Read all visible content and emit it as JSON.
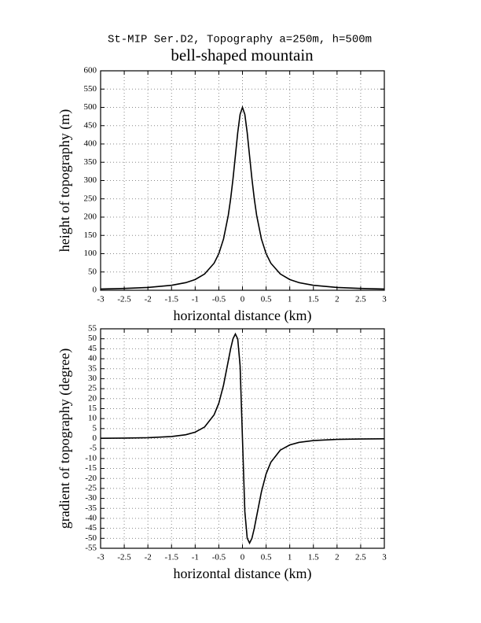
{
  "chart_data": [
    {
      "type": "line",
      "subtitle": "St-MIP Ser.D2, Topography a=250m, h=500m",
      "title": "bell-shaped mountain",
      "xlabel": "horizontal distance (km)",
      "ylabel": "height of topography (m)",
      "x": [
        -3,
        -2.5,
        -2,
        -1.5,
        -1.2,
        -1,
        -0.8,
        -0.6,
        -0.5,
        -0.4,
        -0.3,
        -0.25,
        -0.2,
        -0.15,
        -0.1,
        -0.05,
        0,
        0.05,
        0.1,
        0.15,
        0.2,
        0.25,
        0.3,
        0.4,
        0.5,
        0.6,
        0.8,
        1,
        1.2,
        1.5,
        2,
        2.5,
        3
      ],
      "series": [
        {
          "color": "#000000",
          "values": [
            3.4,
            5.0,
            7.7,
            13.5,
            20.8,
            29.4,
            44.5,
            74.0,
            100,
            140.4,
            204.9,
            250,
            304.9,
            367.6,
            431.0,
            480.8,
            500,
            480.8,
            431.0,
            367.6,
            304.9,
            250,
            204.9,
            140.4,
            100,
            74.0,
            44.5,
            29.4,
            20.8,
            13.5,
            7.7,
            5.0,
            3.4
          ]
        }
      ],
      "xlim": [
        -3,
        3
      ],
      "xticks": [
        -3,
        -2.5,
        -2,
        -1.5,
        -1,
        -0.5,
        0,
        0.5,
        1,
        1.5,
        2,
        2.5,
        3
      ],
      "ylim": [
        0,
        600
      ],
      "yticks": [
        0,
        50,
        100,
        150,
        200,
        250,
        300,
        350,
        400,
        450,
        500,
        550,
        600
      ],
      "grid": true
    },
    {
      "type": "line",
      "xlabel": "horizontal distance (km)",
      "ylabel": "gradient of topography (degree)",
      "x": [
        -3,
        -2.5,
        -2,
        -1.5,
        -1.2,
        -1,
        -0.8,
        -0.6,
        -0.5,
        -0.4,
        -0.3,
        -0.25,
        -0.2,
        -0.15,
        -0.1,
        -0.05,
        0,
        0.05,
        0.1,
        0.15,
        0.2,
        0.25,
        0.3,
        0.4,
        0.5,
        0.6,
        0.8,
        1,
        1.2,
        1.5,
        2,
        2.5,
        3
      ],
      "series": [
        {
          "color": "#000000",
          "values": [
            0.13,
            0.22,
            0.43,
            1.0,
            1.9,
            3.2,
            5.8,
            11.9,
            17.7,
            26.8,
            38.9,
            45,
            50.0,
            52.4,
            49.9,
            36.5,
            0,
            -36.5,
            -49.9,
            -52.4,
            -50.0,
            -45,
            -38.9,
            -26.8,
            -17.7,
            -11.9,
            -5.8,
            -3.2,
            -1.9,
            -1.0,
            -0.43,
            -0.22,
            -0.13
          ]
        }
      ],
      "xlim": [
        -3,
        3
      ],
      "xticks": [
        -3,
        -2.5,
        -2,
        -1.5,
        -1,
        -0.5,
        0,
        0.5,
        1,
        1.5,
        2,
        2.5,
        3
      ],
      "ylim": [
        -55,
        55
      ],
      "yticks": [
        -55,
        -50,
        -45,
        -40,
        -35,
        -30,
        -25,
        -20,
        -15,
        -10,
        -5,
        0,
        5,
        10,
        15,
        20,
        25,
        30,
        35,
        40,
        45,
        50,
        55
      ],
      "grid": true
    }
  ]
}
